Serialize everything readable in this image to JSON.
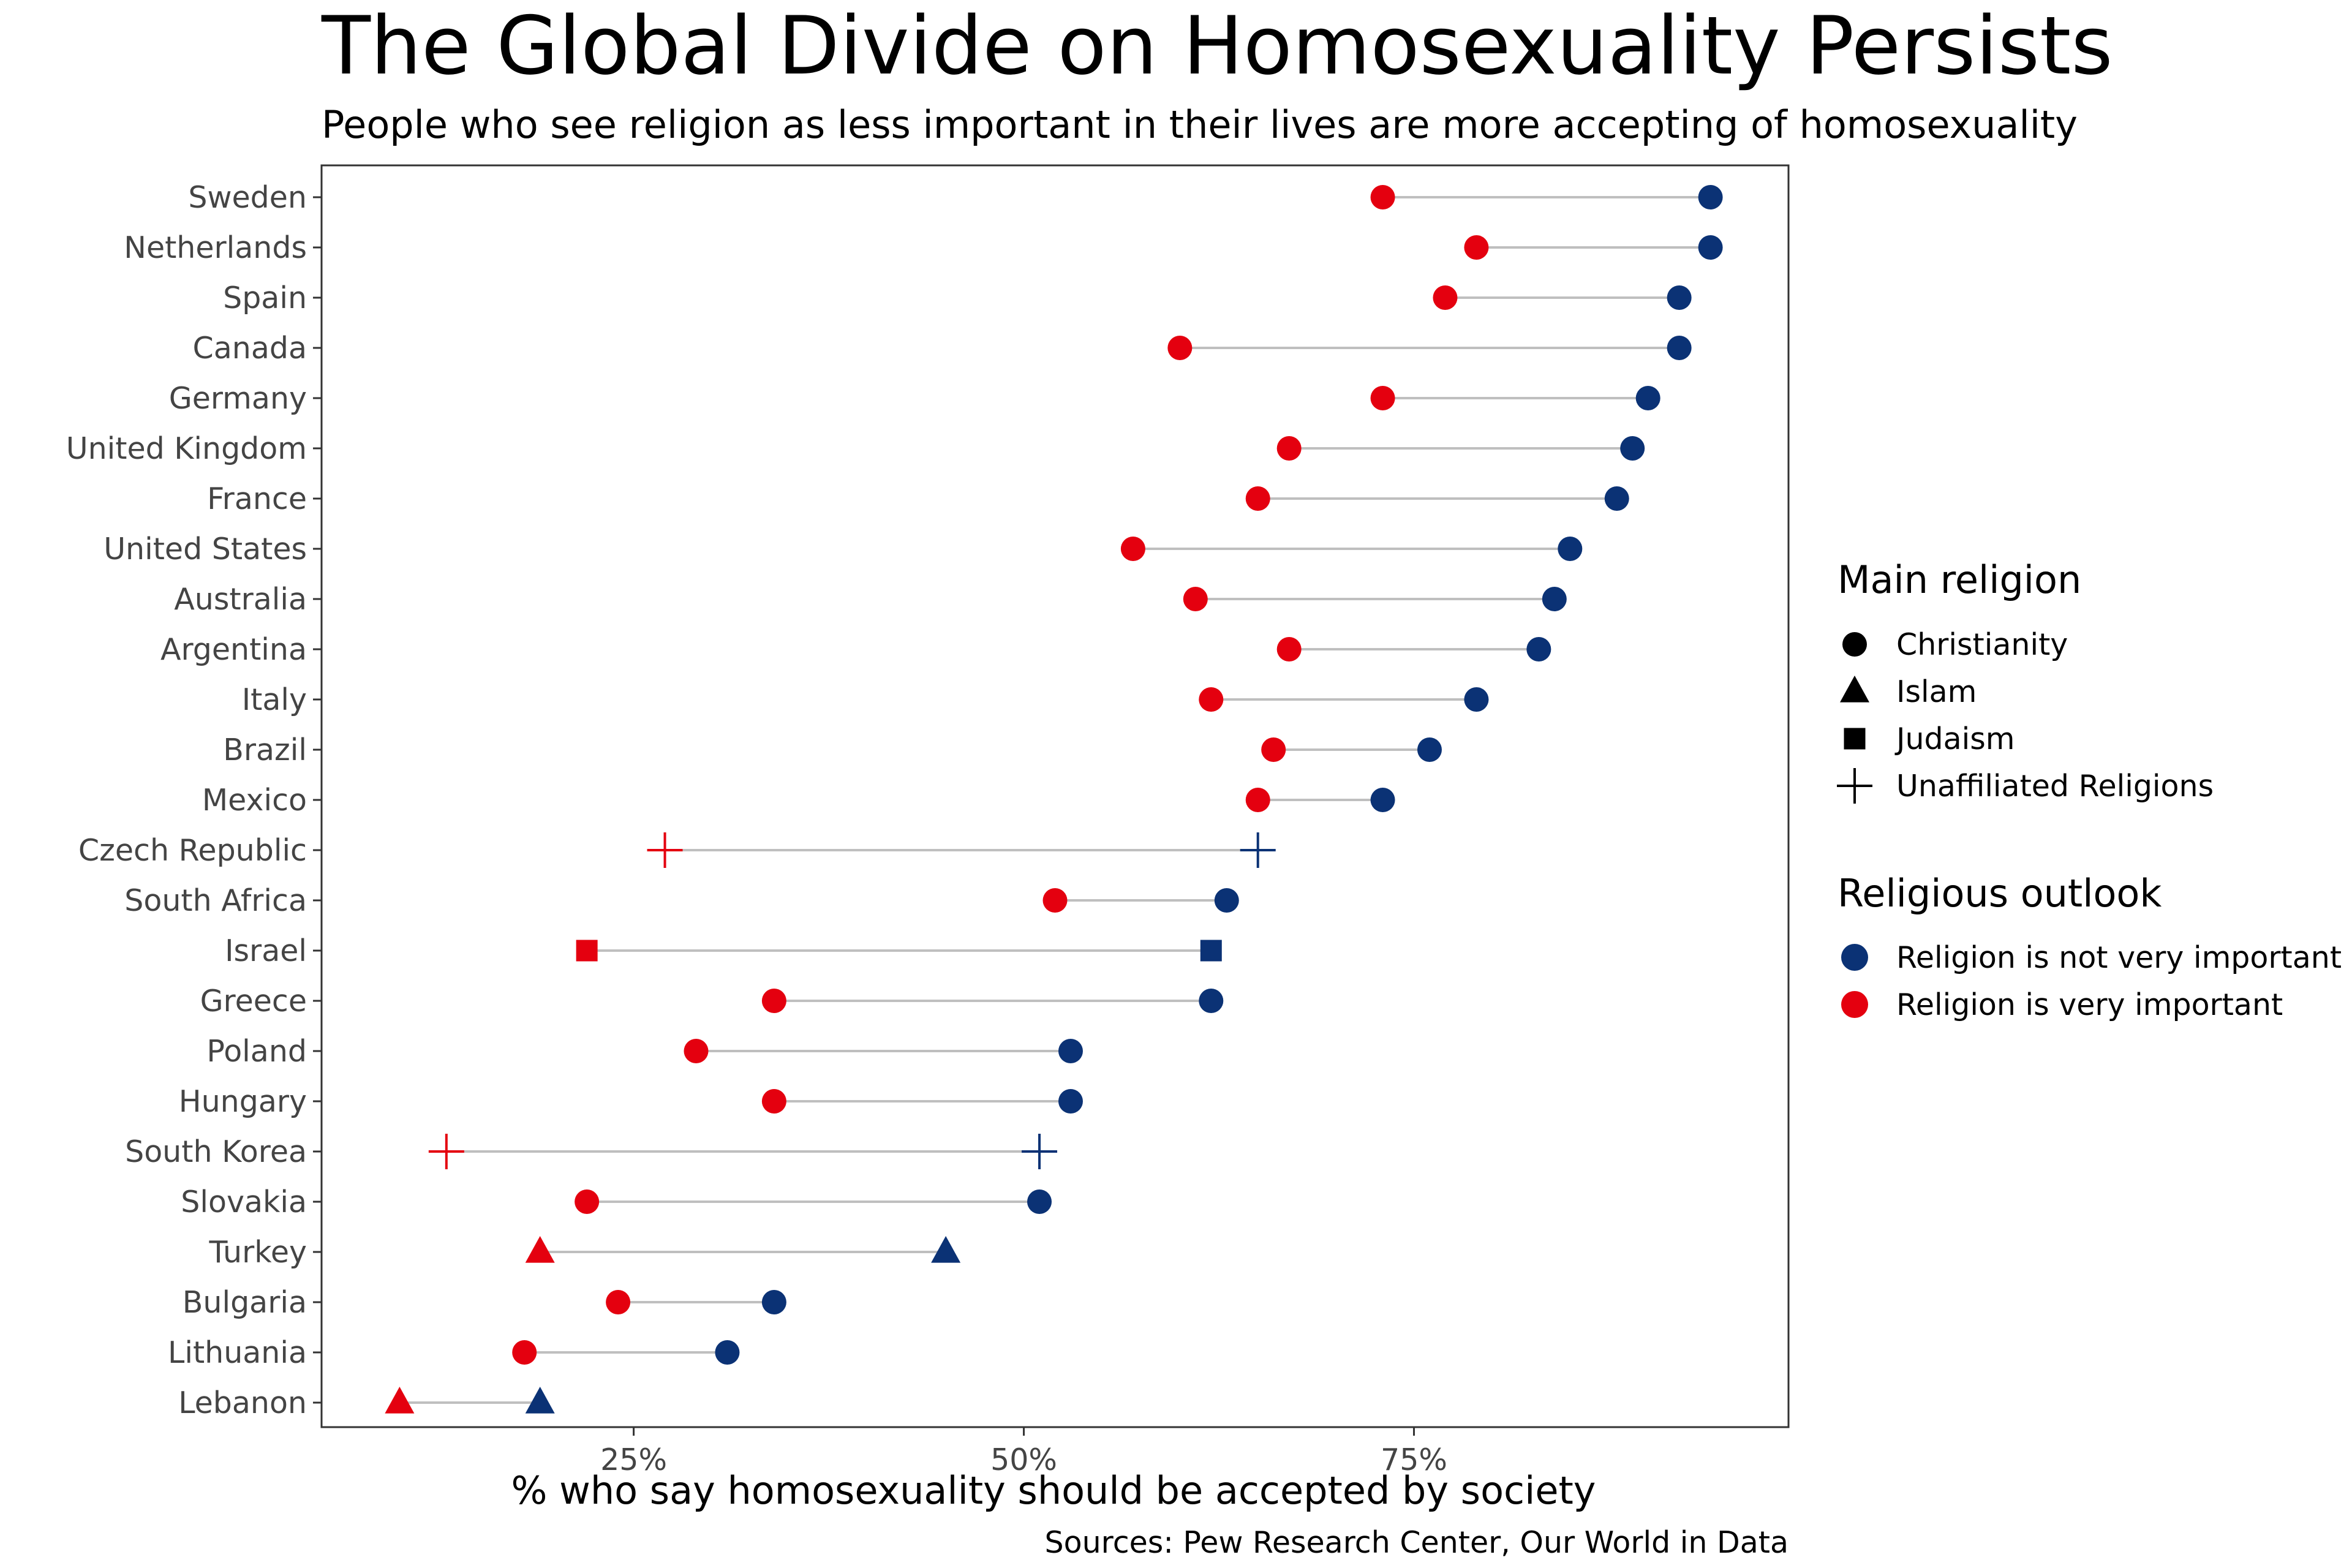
{
  "chart_data": {
    "type": "dumbbell",
    "title": "The Global Divide on Homosexuality Persists",
    "subtitle": "People who see religion as less important in their lives are more accepting of homosexuality",
    "xlabel": "% who say homosexuality should be accepted by society",
    "ylabel": "",
    "caption": "Sources: Pew Research Center, Our World in Data",
    "xlim": [
      5,
      99
    ],
    "xticks": [
      25,
      50,
      75
    ],
    "xtick_labels": [
      "25%",
      "50%",
      "75%"
    ],
    "grid": false,
    "legend_position": "right",
    "colors": {
      "not_important": "#0b3275",
      "very_important": "#e4000f",
      "connector": "#bfbfbf",
      "panel_border": "#333333"
    },
    "legends": {
      "shape": {
        "title": "Main religion",
        "items": [
          {
            "label": "Christianity",
            "shape": "circle"
          },
          {
            "label": "Islam",
            "shape": "triangle"
          },
          {
            "label": "Judaism",
            "shape": "square"
          },
          {
            "label": "Unaffiliated Religions",
            "shape": "plus"
          }
        ]
      },
      "color": {
        "title": "Religious outlook",
        "items": [
          {
            "label": "Religion is not very important",
            "color_key": "not_important"
          },
          {
            "label": "Religion is very important",
            "color_key": "very_important"
          }
        ]
      }
    },
    "series": [
      {
        "name": "Religion is not very important",
        "color_key": "not_important"
      },
      {
        "name": "Religion is very important",
        "color_key": "very_important"
      }
    ],
    "countries": [
      {
        "country": "Sweden",
        "religion": "circle",
        "not_important": 94,
        "very_important": 73
      },
      {
        "country": "Netherlands",
        "religion": "circle",
        "not_important": 94,
        "very_important": 79
      },
      {
        "country": "Spain",
        "religion": "circle",
        "not_important": 92,
        "very_important": 77
      },
      {
        "country": "Canada",
        "religion": "circle",
        "not_important": 92,
        "very_important": 60
      },
      {
        "country": "Germany",
        "religion": "circle",
        "not_important": 90,
        "very_important": 73
      },
      {
        "country": "United Kingdom",
        "religion": "circle",
        "not_important": 89,
        "very_important": 67
      },
      {
        "country": "France",
        "religion": "circle",
        "not_important": 88,
        "very_important": 65
      },
      {
        "country": "United States",
        "religion": "circle",
        "not_important": 85,
        "very_important": 57
      },
      {
        "country": "Australia",
        "religion": "circle",
        "not_important": 84,
        "very_important": 61
      },
      {
        "country": "Argentina",
        "religion": "circle",
        "not_important": 83,
        "very_important": 67
      },
      {
        "country": "Italy",
        "religion": "circle",
        "not_important": 79,
        "very_important": 62
      },
      {
        "country": "Brazil",
        "religion": "circle",
        "not_important": 76,
        "very_important": 66
      },
      {
        "country": "Mexico",
        "religion": "circle",
        "not_important": 73,
        "very_important": 65
      },
      {
        "country": "Czech Republic",
        "religion": "plus",
        "not_important": 65,
        "very_important": 27
      },
      {
        "country": "South Africa",
        "religion": "circle",
        "not_important": 63,
        "very_important": 52
      },
      {
        "country": "Israel",
        "religion": "square",
        "not_important": 62,
        "very_important": 22
      },
      {
        "country": "Greece",
        "religion": "circle",
        "not_important": 62,
        "very_important": 34
      },
      {
        "country": "Poland",
        "religion": "circle",
        "not_important": 53,
        "very_important": 29
      },
      {
        "country": "Hungary",
        "religion": "circle",
        "not_important": 53,
        "very_important": 34
      },
      {
        "country": "South Korea",
        "religion": "plus",
        "not_important": 51,
        "very_important": 13
      },
      {
        "country": "Slovakia",
        "religion": "circle",
        "not_important": 51,
        "very_important": 22
      },
      {
        "country": "Turkey",
        "religion": "triangle",
        "not_important": 45,
        "very_important": 19
      },
      {
        "country": "Bulgaria",
        "religion": "circle",
        "not_important": 34,
        "very_important": 24
      },
      {
        "country": "Lithuania",
        "religion": "circle",
        "not_important": 31,
        "very_important": 18
      },
      {
        "country": "Lebanon",
        "religion": "triangle",
        "not_important": 19,
        "very_important": 10
      }
    ]
  }
}
